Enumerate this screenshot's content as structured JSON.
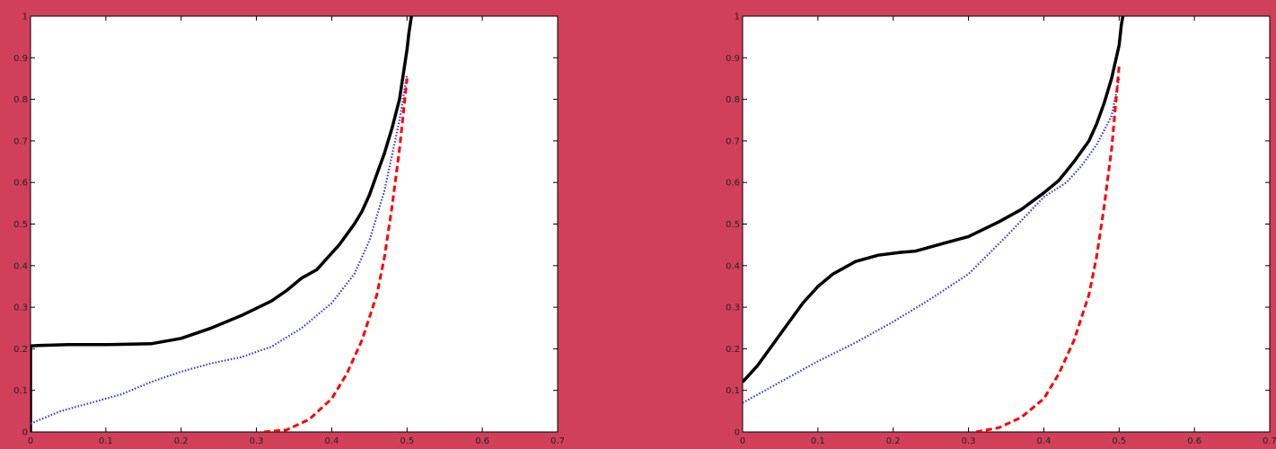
{
  "chart_data": [
    {
      "type": "line",
      "xlim": [
        0,
        0.7
      ],
      "ylim": [
        0,
        1
      ],
      "x_ticks": [
        "0",
        "0.1",
        "0.2",
        "0.3",
        "0.4",
        "0.5",
        "0.6",
        "0.7"
      ],
      "y_ticks": [
        "0",
        "0.1",
        "0.2",
        "0.3",
        "0.4",
        "0.5",
        "0.6",
        "0.7",
        "0.8",
        "0.9",
        "1"
      ],
      "grid": false,
      "series": [
        {
          "style": "solid",
          "color": "#000000",
          "x": [
            0,
            0,
            0.01,
            0.05,
            0.1,
            0.16,
            0.2,
            0.24,
            0.28,
            0.32,
            0.34,
            0.36,
            0.38,
            0.39,
            0.41,
            0.43,
            0.44,
            0.45,
            0.46,
            0.47,
            0.48,
            0.49,
            0.495,
            0.5,
            0.5025,
            0.505,
            0.506
          ],
          "y": [
            0,
            0.207,
            0.208,
            0.21,
            0.21,
            0.212,
            0.225,
            0.25,
            0.28,
            0.315,
            0.34,
            0.37,
            0.39,
            0.41,
            0.45,
            0.5,
            0.53,
            0.57,
            0.62,
            0.67,
            0.73,
            0.8,
            0.86,
            0.92,
            0.96,
            0.99,
            1.0
          ]
        },
        {
          "style": "dotted",
          "color": "#3333dd",
          "x": [
            0,
            0.04,
            0.08,
            0.12,
            0.16,
            0.2,
            0.24,
            0.28,
            0.32,
            0.36,
            0.4,
            0.43,
            0.45,
            0.47,
            0.49,
            0.5
          ],
          "y": [
            0.02,
            0.05,
            0.07,
            0.09,
            0.12,
            0.145,
            0.165,
            0.18,
            0.205,
            0.25,
            0.31,
            0.38,
            0.46,
            0.58,
            0.75,
            0.86
          ]
        },
        {
          "style": "dashed",
          "color": "#ff0000",
          "x": [
            0.31,
            0.34,
            0.37,
            0.4,
            0.42,
            0.44,
            0.46,
            0.47,
            0.48,
            0.49,
            0.5
          ],
          "y": [
            0,
            0.005,
            0.03,
            0.08,
            0.14,
            0.22,
            0.33,
            0.42,
            0.54,
            0.68,
            0.85
          ]
        }
      ]
    },
    {
      "type": "line",
      "xlim": [
        0,
        0.7
      ],
      "ylim": [
        0,
        1
      ],
      "x_ticks": [
        "0",
        "0.1",
        "0.2",
        "0.3",
        "0.4",
        "0.5",
        "0.6",
        "0.7"
      ],
      "y_ticks": [
        "0",
        "0.1",
        "0.2",
        "0.3",
        "0.4",
        "0.5",
        "0.6",
        "0.7",
        "0.8",
        "0.9",
        "1"
      ],
      "grid": false,
      "series": [
        {
          "style": "solid",
          "color": "#000000",
          "x": [
            0,
            0.02,
            0.04,
            0.06,
            0.08,
            0.1,
            0.12,
            0.15,
            0.18,
            0.21,
            0.23,
            0.26,
            0.3,
            0.34,
            0.37,
            0.4,
            0.42,
            0.44,
            0.46,
            0.47,
            0.48,
            0.49,
            0.5,
            0.503,
            0.505
          ],
          "y": [
            0.12,
            0.16,
            0.21,
            0.26,
            0.31,
            0.35,
            0.38,
            0.41,
            0.425,
            0.432,
            0.435,
            0.45,
            0.47,
            0.505,
            0.535,
            0.575,
            0.605,
            0.65,
            0.7,
            0.74,
            0.79,
            0.85,
            0.93,
            0.98,
            1.0
          ]
        },
        {
          "style": "dotted",
          "color": "#3333dd",
          "x": [
            0,
            0.05,
            0.1,
            0.15,
            0.2,
            0.25,
            0.3,
            0.35,
            0.4,
            0.43,
            0.45,
            0.47,
            0.49,
            0.5
          ],
          "y": [
            0.07,
            0.12,
            0.17,
            0.215,
            0.265,
            0.32,
            0.38,
            0.47,
            0.565,
            0.6,
            0.64,
            0.69,
            0.76,
            0.85
          ]
        },
        {
          "style": "dashed",
          "color": "#ff0000",
          "x": [
            0.31,
            0.34,
            0.37,
            0.4,
            0.42,
            0.44,
            0.46,
            0.47,
            0.48,
            0.49,
            0.5
          ],
          "y": [
            0,
            0.01,
            0.035,
            0.08,
            0.14,
            0.22,
            0.33,
            0.42,
            0.54,
            0.68,
            0.88
          ]
        }
      ]
    }
  ]
}
